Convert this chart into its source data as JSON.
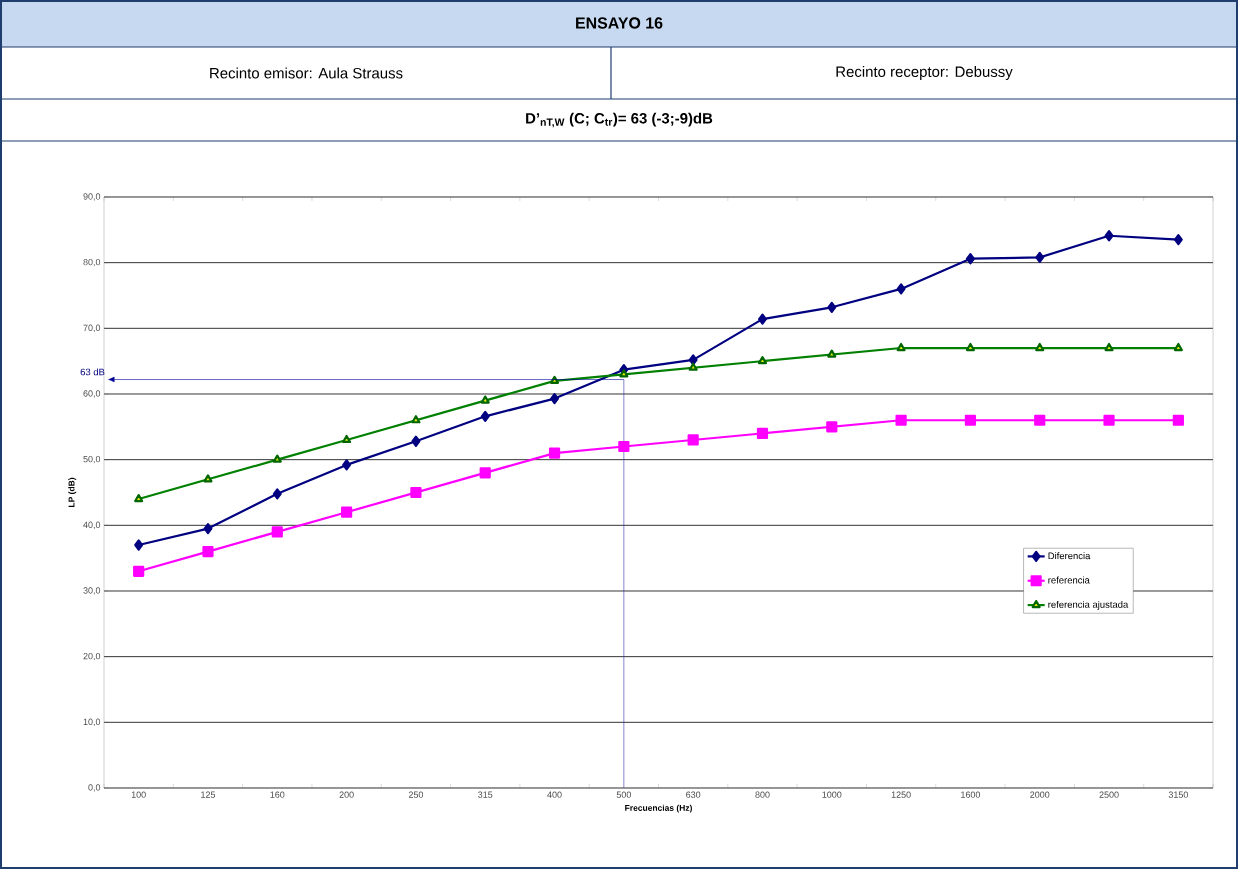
{
  "chart_data": {
    "type": "line",
    "title": "ENSAYO 16",
    "subtitle": "D’$_{nT,W}$ (C; C$_{tr}$)= 63 (-3;-9)dB",
    "annotations": [
      "Recinto emisor: Aula Strauss",
      "Recinto receptor: Debussy",
      {
        "text": "63 dB",
        "x": "500",
        "y": 62.2
      }
    ],
    "xlabel": "Frecuencias (Hz)",
    "ylabel": "LP (dB)",
    "categories": [
      "100",
      "125",
      "160",
      "200",
      "250",
      "315",
      "400",
      "500",
      "630",
      "800",
      "1000",
      "1250",
      "1600",
      "2000",
      "2500",
      "3150"
    ],
    "series": [
      {
        "name": "Diferencia",
        "color": "#000080",
        "marker": "diamond",
        "values": [
          37.0,
          39.5,
          44.8,
          49.2,
          52.8,
          56.6,
          59.3,
          63.7,
          65.2,
          71.4,
          73.2,
          76.0,
          80.6,
          80.8,
          84.1,
          83.5
        ]
      },
      {
        "name": "referencia",
        "color": "#ff00ff",
        "marker": "square",
        "values": [
          33,
          36,
          39,
          42,
          45,
          48,
          51,
          52,
          53,
          54,
          55,
          56,
          56,
          56,
          56,
          56
        ]
      },
      {
        "name": "referencia ajustada",
        "color": "#008000",
        "marker": "triangle",
        "values": [
          44,
          47,
          50,
          53,
          56,
          59,
          62,
          63,
          64,
          65,
          66,
          67,
          67,
          67,
          67,
          67
        ]
      }
    ],
    "ylim": [
      0,
      90
    ],
    "yticks": [
      {
        "value": 0,
        "label": "0,0"
      },
      {
        "value": 10,
        "label": "10,0"
      },
      {
        "value": 20,
        "label": "20,0"
      },
      {
        "value": 30,
        "label": "30,0"
      },
      {
        "value": 40,
        "label": "40,0"
      },
      {
        "value": 50,
        "label": "50,0"
      },
      {
        "value": 60,
        "label": "60,0"
      },
      {
        "value": 70,
        "label": "70,0"
      },
      {
        "value": 80,
        "label": "80,0"
      },
      {
        "value": 90,
        "label": "90,0"
      }
    ],
    "ref_lines": [
      {
        "axis": "x",
        "value": "500",
        "color": "#3333aa"
      }
    ],
    "grid": "y",
    "legend": "right",
    "line_style": "solid"
  }
}
